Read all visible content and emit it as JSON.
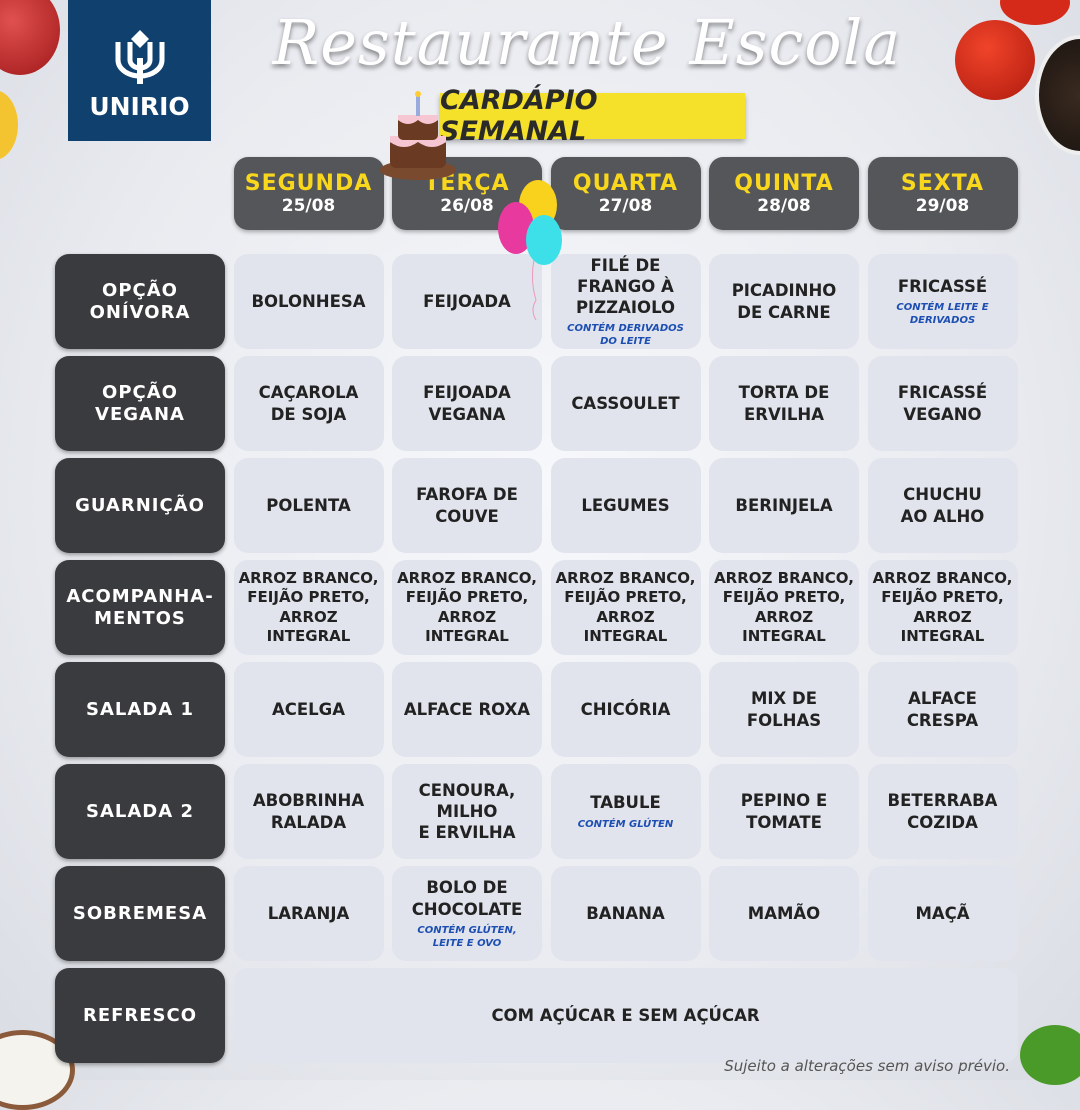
{
  "logo": {
    "text": "UNIRIO"
  },
  "header": {
    "title": "Restaurante Escola",
    "subtitle": "CARDÁPIO SEMANAL"
  },
  "days": [
    {
      "name": "SEGUNDA",
      "date": "25/08"
    },
    {
      "name": "TERÇA",
      "date": "26/08"
    },
    {
      "name": "QUARTA",
      "date": "27/08"
    },
    {
      "name": "QUINTA",
      "date": "28/08"
    },
    {
      "name": "SEXTA",
      "date": "29/08"
    }
  ],
  "rows": [
    {
      "label": "OPÇÃO\nONÍVORA",
      "cells": [
        {
          "text": "BOLONHESA"
        },
        {
          "text": "FEIJOADA"
        },
        {
          "text": "FILÉ DE\nFRANGO À\nPIZZAIOLO",
          "note": "CONTÉM DERIVADOS DO LEITE"
        },
        {
          "text": "PICADINHO\nDE CARNE"
        },
        {
          "text": "FRICASSÉ",
          "note": "CONTÉM LEITE E DERIVADOS"
        }
      ]
    },
    {
      "label": "OPÇÃO\nVEGANA",
      "cells": [
        {
          "text": "CAÇAROLA\nDE SOJA"
        },
        {
          "text": "FEIJOADA\nVEGANA"
        },
        {
          "text": "CASSOULET"
        },
        {
          "text": "TORTA DE\nERVILHA"
        },
        {
          "text": "FRICASSÉ\nVEGANO"
        }
      ]
    },
    {
      "label": "GUARNIÇÃO",
      "cells": [
        {
          "text": "POLENTA"
        },
        {
          "text": "FAROFA DE\nCOUVE"
        },
        {
          "text": "LEGUMES"
        },
        {
          "text": "BERINJELA"
        },
        {
          "text": "CHUCHU\nAO ALHO"
        }
      ]
    },
    {
      "label": "ACOMPANHA-\nMENTOS",
      "cells": [
        {
          "text": "ARROZ BRANCO,\nFEIJÃO PRETO,\nARROZ INTEGRAL"
        },
        {
          "text": "ARROZ BRANCO,\nFEIJÃO PRETO,\nARROZ INTEGRAL"
        },
        {
          "text": "ARROZ BRANCO,\nFEIJÃO PRETO,\nARROZ INTEGRAL"
        },
        {
          "text": "ARROZ BRANCO,\nFEIJÃO PRETO,\nARROZ INTEGRAL"
        },
        {
          "text": "ARROZ BRANCO,\nFEIJÃO PRETO,\nARROZ INTEGRAL"
        }
      ]
    },
    {
      "label": "SALADA 1",
      "cells": [
        {
          "text": "ACELGA"
        },
        {
          "text": "ALFACE ROXA"
        },
        {
          "text": "CHICÓRIA"
        },
        {
          "text": "MIX DE\nFOLHAS"
        },
        {
          "text": "ALFACE\nCRESPA"
        }
      ]
    },
    {
      "label": "SALADA 2",
      "cells": [
        {
          "text": "ABOBRINHA\nRALADA"
        },
        {
          "text": "CENOURA,\nMILHO\nE ERVILHA"
        },
        {
          "text": "TABULE",
          "note": "CONTÉM GLÚTEN"
        },
        {
          "text": "PEPINO E\nTOMATE"
        },
        {
          "text": "BETERRABA\nCOZIDA"
        }
      ]
    },
    {
      "label": "SOBREMESA",
      "cells": [
        {
          "text": "LARANJA"
        },
        {
          "text": "BOLO DE\nCHOCOLATE",
          "note": "CONTÉM GLÚTEN, LEITE E OVO"
        },
        {
          "text": "BANANA"
        },
        {
          "text": "MAMÃO"
        },
        {
          "text": "MAÇÃ"
        }
      ]
    }
  ],
  "refresco": {
    "label": "REFRESCO",
    "text": "COM AÇÚCAR E SEM AÇÚCAR"
  },
  "footer": {
    "disclaimer": "Sujeito a alterações sem aviso prévio."
  },
  "colors": {
    "header_bg": "#555659",
    "label_bg": "#3a3b3e",
    "day_name": "#f9d71c",
    "cell_bg": "#e1e4ec",
    "note": "#1d4fb3",
    "logo_bg": "#10406e",
    "banner": "#f5e02a"
  },
  "decorations": [
    "apple",
    "lemon",
    "tomatoes",
    "peppercorns",
    "rice",
    "basil",
    "birthday-cake",
    "balloons"
  ]
}
